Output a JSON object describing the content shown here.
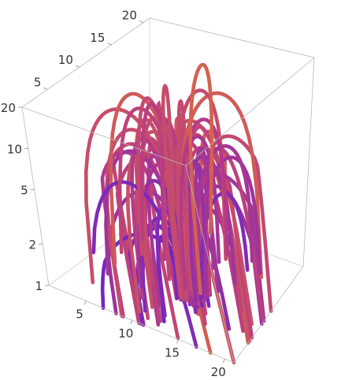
{
  "chart_data": {
    "type": "3d-tube-plot",
    "title": "",
    "xlabel": "",
    "ylabel": "",
    "zlabel": "",
    "xlim": [
      1,
      21
    ],
    "ylim": [
      1,
      21
    ],
    "zlim": [
      1,
      20
    ],
    "z_scale": "log",
    "axes": {
      "x": {
        "ticks": [
          5,
          10,
          15,
          20
        ],
        "labels": [
          "5",
          "10",
          "15",
          "20"
        ]
      },
      "y": {
        "ticks": [
          5,
          10,
          15,
          20
        ],
        "labels": [
          "5",
          "10",
          "15",
          "20"
        ]
      },
      "z": {
        "ticks": [
          1,
          2,
          5,
          10,
          20
        ],
        "labels": [
          "1",
          "2",
          "5",
          "10",
          "20"
        ]
      }
    },
    "boxed": true,
    "grid": false,
    "legend": false,
    "colors": {
      "low": "#2a16c4",
      "mid": "#a13a9c",
      "high": "#ff9a00",
      "box": "#b9b9b9"
    },
    "color_function": "rising-height: purple → magenta → orange"
  }
}
